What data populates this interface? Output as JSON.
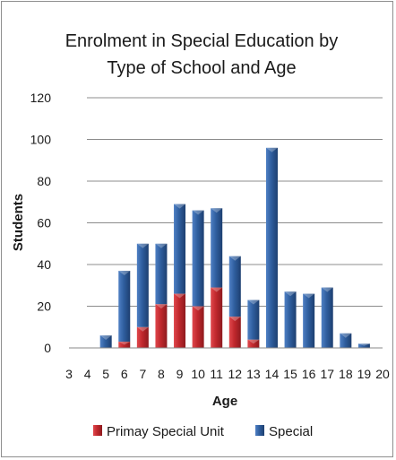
{
  "chart_data": {
    "type": "bar",
    "stacked": true,
    "title": "Enrolment in Special Education by Type of School and Age",
    "title_lines": [
      "Enrolment in Special Education by",
      "Type of School and Age"
    ],
    "xlabel": "Age",
    "ylabel": "Students",
    "categories": [
      "3",
      "4",
      "5",
      "6",
      "7",
      "8",
      "9",
      "10",
      "11",
      "12",
      "13",
      "14",
      "15",
      "16",
      "17",
      "18",
      "19",
      "20"
    ],
    "xlim": [
      3,
      20
    ],
    "ylim": [
      0,
      120
    ],
    "yticks": [
      0,
      20,
      40,
      60,
      80,
      100,
      120
    ],
    "grid": true,
    "legend_position": "bottom",
    "series": [
      {
        "name": "Primay Special Unit",
        "color": "#c0282d",
        "values": [
          0,
          0,
          0,
          3,
          10,
          21,
          26,
          20,
          29,
          15,
          4,
          0,
          0,
          0,
          0,
          0,
          0,
          0
        ]
      },
      {
        "name": "Special",
        "color": "#2f5e9e",
        "values": [
          0,
          0,
          6,
          34,
          40,
          29,
          43,
          46,
          38,
          29,
          19,
          96,
          27,
          26,
          29,
          7,
          2,
          0
        ]
      }
    ]
  }
}
